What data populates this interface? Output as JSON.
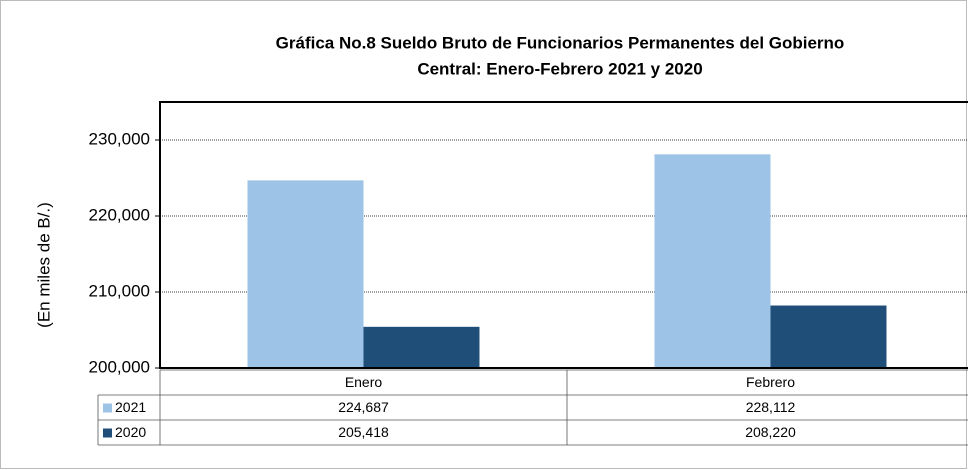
{
  "chart_data": {
    "type": "bar",
    "title": [
      "Gráfica No.8 Sueldo Bruto de Funcionarios Permanentes del Gobierno",
      "Central: Enero-Febrero 2021 y 2020"
    ],
    "y_label": "(En miles de B/.)",
    "categories": [
      "Enero",
      "Febrero"
    ],
    "series": [
      {
        "name": "2021",
        "color": "#9dc3e6",
        "values": [
          224687,
          228112
        ],
        "value_labels": [
          "224,687",
          "228,112"
        ]
      },
      {
        "name": "2020",
        "color": "#1f4e79",
        "values": [
          205418,
          208220
        ],
        "value_labels": [
          "205,418",
          "208,220"
        ]
      }
    ],
    "ylim": [
      200000,
      235000
    ],
    "yticks": [
      {
        "value": 200000,
        "label": "200,000"
      },
      {
        "value": 210000,
        "label": "210,000"
      },
      {
        "value": 220000,
        "label": "220,000"
      },
      {
        "value": 230000,
        "label": "230,000"
      }
    ],
    "grid": true,
    "data_table": true
  }
}
